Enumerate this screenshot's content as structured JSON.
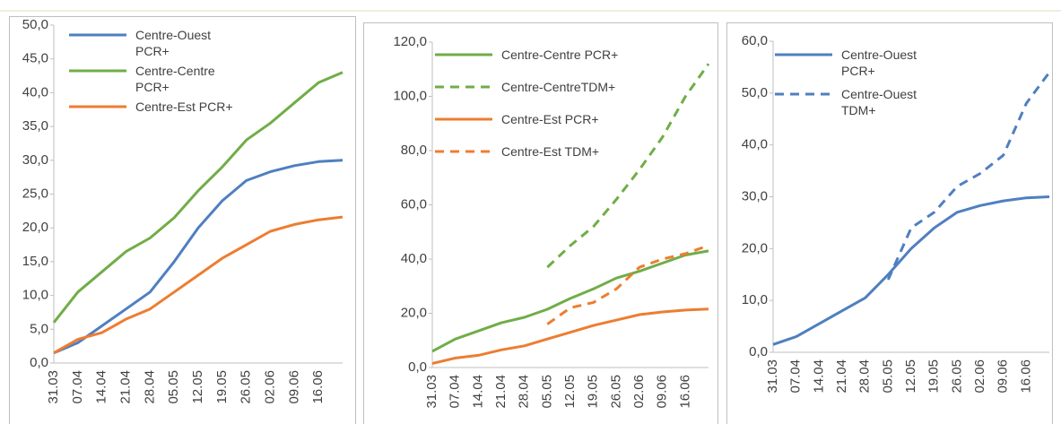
{
  "chart_data": [
    {
      "type": "line",
      "categories": [
        "31.03",
        "07.04",
        "14.04",
        "21.04",
        "28.04",
        "05.05",
        "12.05",
        "19.05",
        "26.05",
        "02.06",
        "09.06",
        "16.06",
        null
      ],
      "ylim": [
        0,
        50
      ],
      "yticks": [
        {
          "value": 0,
          "label": "0,0"
        },
        {
          "value": 5,
          "label": "5,0"
        },
        {
          "value": 10,
          "label": "10,0"
        },
        {
          "value": 15,
          "label": "15,0"
        },
        {
          "value": 20,
          "label": "20,0"
        },
        {
          "value": 25,
          "label": "25,0"
        },
        {
          "value": 30,
          "label": "30,0"
        },
        {
          "value": 35,
          "label": "35,0"
        },
        {
          "value": 40,
          "label": "40,0"
        },
        {
          "value": 45,
          "label": "45,0"
        },
        {
          "value": 50,
          "label": "50,0"
        }
      ],
      "series": [
        {
          "name": "Centre-Ouest PCR+",
          "color": "#4f7fc0",
          "style": "solid",
          "values": [
            1.5,
            3,
            5.5,
            8,
            10.5,
            15,
            20,
            24,
            27,
            28.3,
            29.2,
            29.8,
            30
          ]
        },
        {
          "name": "Centre-Centre PCR+",
          "color": "#70ad47",
          "style": "solid",
          "values": [
            6,
            10.5,
            13.5,
            16.5,
            18.5,
            21.5,
            25.5,
            29,
            33,
            35.5,
            38.5,
            41.5,
            43
          ]
        },
        {
          "name": "Centre-Est PCR+",
          "color": "#ed7d31",
          "style": "solid",
          "values": [
            1.5,
            3.5,
            4.5,
            6.5,
            8,
            10.5,
            13,
            15.5,
            17.5,
            19.5,
            20.5,
            21.2,
            21.6
          ]
        }
      ]
    },
    {
      "type": "line",
      "categories": [
        "31.03",
        "07.04",
        "14.04",
        "21.04",
        "28.04",
        "05.05",
        "12.05",
        "19.05",
        "26.05",
        "02.06",
        "09.06",
        "16.06",
        null
      ],
      "ylim": [
        0,
        120
      ],
      "yticks": [
        {
          "value": 0,
          "label": "0,0"
        },
        {
          "value": 20,
          "label": "20,0"
        },
        {
          "value": 40,
          "label": "40,0"
        },
        {
          "value": 60,
          "label": "60,0"
        },
        {
          "value": 80,
          "label": "80,0"
        },
        {
          "value": 100,
          "label": "100,0"
        },
        {
          "value": 120,
          "label": "120,0"
        }
      ],
      "series": [
        {
          "name": "Centre-Centre PCR+",
          "color": "#70ad47",
          "style": "solid",
          "values": [
            6,
            10.5,
            13.5,
            16.5,
            18.5,
            21.5,
            25.5,
            29,
            33,
            35.5,
            38.5,
            41.5,
            43
          ]
        },
        {
          "name": "Centre-CentreTDM+",
          "color": "#70ad47",
          "style": "dashed",
          "values": [
            null,
            null,
            null,
            null,
            null,
            37,
            45,
            52,
            62,
            73,
            85,
            100,
            112
          ]
        },
        {
          "name": "Centre-Est PCR+",
          "color": "#ed7d31",
          "style": "solid",
          "values": [
            1.5,
            3.5,
            4.5,
            6.5,
            8,
            10.5,
            13,
            15.5,
            17.5,
            19.5,
            20.5,
            21.2,
            21.6
          ]
        },
        {
          "name": "Centre-Est TDM+",
          "color": "#ed7d31",
          "style": "dashed",
          "values": [
            null,
            null,
            null,
            null,
            null,
            16,
            22,
            24,
            29,
            37,
            40,
            42,
            45
          ]
        }
      ]
    },
    {
      "type": "line",
      "categories": [
        "31.03",
        "07.04",
        "14.04",
        "21.04",
        "28.04",
        "05.05",
        "12.05",
        "19.05",
        "26.05",
        "02.06",
        "09.06",
        "16.06",
        null
      ],
      "ylim": [
        0,
        60
      ],
      "yticks": [
        {
          "value": 0,
          "label": "0,0"
        },
        {
          "value": 10,
          "label": "10,0"
        },
        {
          "value": 20,
          "label": "20,0"
        },
        {
          "value": 30,
          "label": "30,0"
        },
        {
          "value": 40,
          "label": "40,0"
        },
        {
          "value": 50,
          "label": "50,0"
        },
        {
          "value": 60,
          "label": "60,0"
        }
      ],
      "series": [
        {
          "name": "Centre-Ouest PCR+",
          "color": "#4f7fc0",
          "style": "solid",
          "values": [
            1.5,
            3,
            5.5,
            8,
            10.5,
            15,
            20,
            24,
            27,
            28.3,
            29.2,
            29.8,
            30
          ]
        },
        {
          "name": "Centre-Ouest TDM+",
          "color": "#4f7fc0",
          "style": "dashed",
          "values": [
            null,
            null,
            null,
            null,
            null,
            14,
            24,
            27,
            32,
            34.5,
            38,
            48,
            54
          ]
        }
      ]
    }
  ]
}
